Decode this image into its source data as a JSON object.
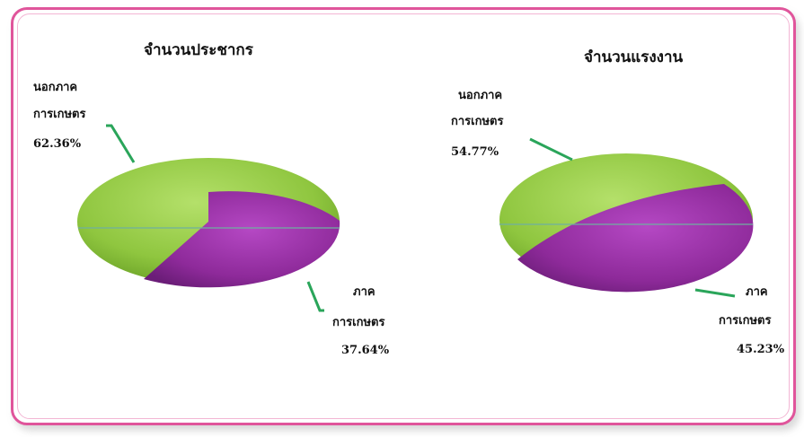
{
  "chart_data": [
    {
      "type": "pie",
      "title": "จำนวนประชากร",
      "slices": [
        {
          "label_lines": [
            "นอกภาค",
            "การเกษตร"
          ],
          "value_label": "62.36%",
          "value": 62.36,
          "color": "#8fc63f"
        },
        {
          "label_lines": [
            "ภาค",
            "การเกษตร"
          ],
          "value_label": "37.64%",
          "value": 37.64,
          "color": "#8e2a9a"
        }
      ]
    },
    {
      "type": "pie",
      "title": "จำนวนแรงงาน",
      "slices": [
        {
          "label_lines": [
            "นอกภาค",
            "การเกษตร"
          ],
          "value_label": "54.77%",
          "value": 54.77,
          "color": "#8fc63f"
        },
        {
          "label_lines": [
            "ภาค",
            "การเกษตร"
          ],
          "value_label": "45.23%",
          "value": 45.23,
          "color": "#8e2a9a"
        }
      ]
    }
  ],
  "colors": {
    "frame": "#e0559b",
    "leader": "#2aa55a"
  }
}
